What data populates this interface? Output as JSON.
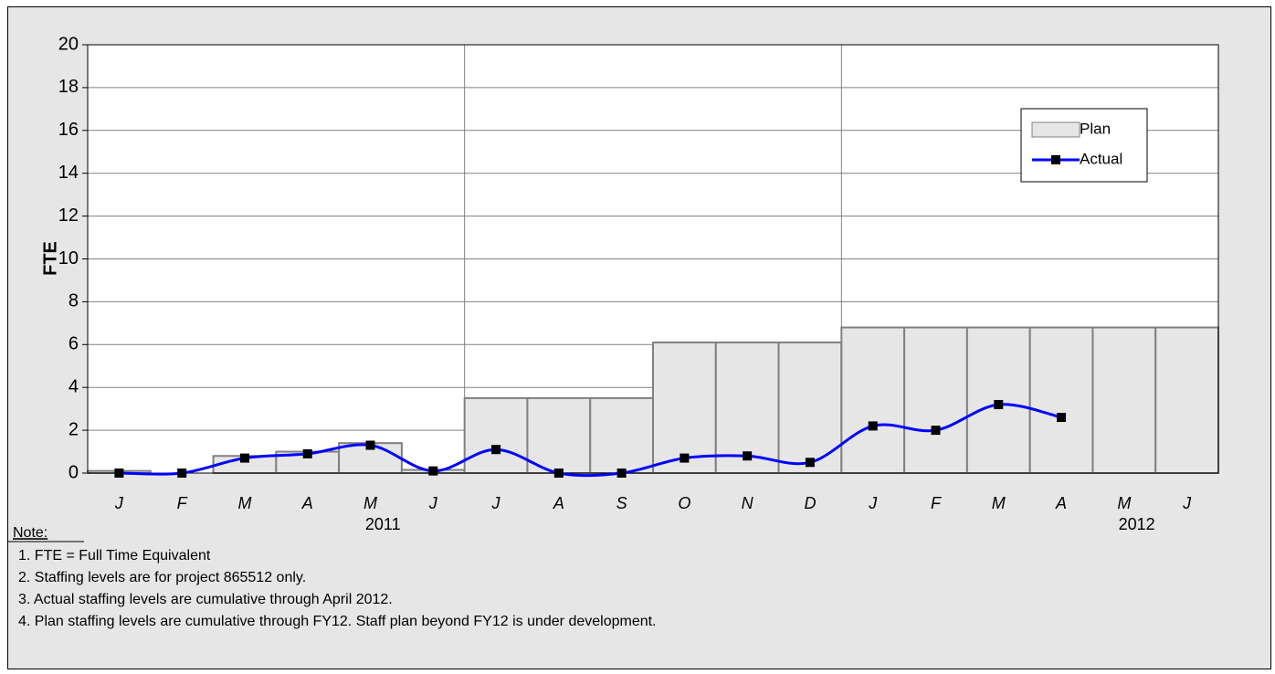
{
  "chart_data": {
    "type": "bar_line",
    "y_label": "FTE",
    "categories": [
      "J",
      "F",
      "M",
      "A",
      "M",
      "J",
      "J",
      "A",
      "S",
      "O",
      "N",
      "D",
      "J",
      "F",
      "M",
      "A",
      "M",
      "J"
    ],
    "year_labels": [
      "2011",
      "2012"
    ],
    "series": [
      {
        "name": "Plan",
        "type": "bar",
        "color": "#e6e6e6",
        "values": [
          0.1,
          0,
          0.8,
          1.0,
          1.4,
          0.15,
          3.5,
          3.5,
          3.5,
          6.1,
          6.1,
          6.1,
          6.8,
          6.8,
          6.8,
          6.8,
          6.8,
          6.8
        ]
      },
      {
        "name": "Actual",
        "type": "line",
        "color": "#0000ff",
        "values": [
          0,
          0,
          0.7,
          0.9,
          1.3,
          0.1,
          1.1,
          0,
          0,
          0.7,
          0.8,
          0.5,
          2.2,
          2.0,
          3.2,
          2.6,
          null,
          null
        ]
      }
    ],
    "ylim": [
      0,
      20
    ],
    "yticks": [
      0,
      2,
      4,
      6,
      8,
      10,
      12,
      14,
      16,
      18,
      20
    ],
    "grid": true,
    "legend": "upper right"
  },
  "notes": {
    "heading": "Note:",
    "items": [
      "1. FTE = Full Time Equivalent",
      "2. Staffing levels are for project 865512 only.",
      "3. Actual staffing levels are cumulative through April 2012.",
      "4. Plan staffing levels are cumulative through FY12. Staff plan beyond FY12 is under development."
    ]
  }
}
